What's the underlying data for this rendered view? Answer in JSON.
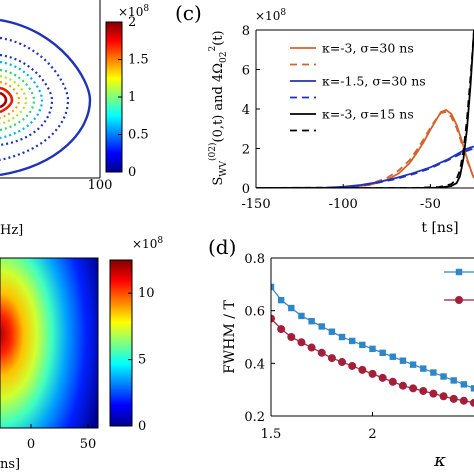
{
  "chart_data": [
    {
      "type": "contour",
      "panel": "top-left (cropped)",
      "xtick_labels": [
        "100"
      ],
      "xlabel_fragment": "Hz]",
      "colorbar": {
        "range": [
          0,
          2
        ],
        "multiplier": "×10^8",
        "tick_labels": [
          "0",
          "0.5",
          "1",
          "1.5",
          "2"
        ]
      }
    },
    {
      "type": "line",
      "panel_label": "(c)",
      "y_multiplier": "×10^8",
      "xlabel": "t [ns]",
      "ylabel": "S_WV^(02)(0,t) and 4Ω_02^2(t)",
      "xlim": [
        -150,
        -25
      ],
      "ylim": [
        0,
        8
      ],
      "x_tick_labels": [
        "-150",
        "-100",
        "-50"
      ],
      "y_tick_labels": [
        "0",
        "2",
        "4",
        "6",
        "8"
      ],
      "legend": [
        {
          "label": "κ=-3, σ=30 ns",
          "color": "#d5622d",
          "style": "solid"
        },
        {
          "label": "",
          "color": "#d5622d",
          "style": "dashed"
        },
        {
          "label": "κ=-1.5, σ=30 ns",
          "color": "#1f33b8",
          "style": "solid"
        },
        {
          "label": "",
          "color": "#1f33b8",
          "style": "dashed"
        },
        {
          "label": "κ=-3, σ=15 ns",
          "color": "#000000",
          "style": "solid"
        },
        {
          "label": "",
          "color": "#000000",
          "style": "dashed"
        }
      ],
      "series": [
        {
          "color": "#d5622d",
          "style": "solid",
          "x": [
            -150,
            -110,
            -95,
            -85,
            -75,
            -68,
            -62,
            -58,
            -54,
            -50,
            -47,
            -44,
            -41,
            -38,
            -35,
            -32,
            -29,
            -26,
            -25
          ],
          "y": [
            0,
            0.01,
            0.05,
            0.15,
            0.4,
            0.75,
            1.25,
            1.75,
            2.3,
            2.95,
            3.4,
            3.85,
            3.95,
            3.75,
            3.2,
            2.4,
            1.5,
            0.7,
            0.5
          ]
        },
        {
          "color": "#d5622d",
          "style": "dashed",
          "x": [
            -150,
            -110,
            -95,
            -85,
            -75,
            -68,
            -62,
            -58,
            -54,
            -50,
            -47,
            -44,
            -41,
            -38,
            -35,
            -32,
            -29,
            -26,
            -25
          ],
          "y": [
            0,
            0.02,
            0.07,
            0.2,
            0.5,
            0.9,
            1.4,
            1.9,
            2.45,
            3.05,
            3.45,
            3.8,
            3.85,
            3.6,
            3.05,
            2.25,
            1.4,
            0.7,
            0.5
          ]
        },
        {
          "color": "#1f33b8",
          "style": "solid",
          "x": [
            -150,
            -110,
            -100,
            -90,
            -80,
            -70,
            -60,
            -50,
            -45,
            -40,
            -35,
            -30,
            -27,
            -25
          ],
          "y": [
            0,
            0.02,
            0.06,
            0.15,
            0.3,
            0.5,
            0.75,
            1.05,
            1.25,
            1.45,
            1.7,
            1.95,
            2.05,
            2.1
          ]
        },
        {
          "color": "#1f33b8",
          "style": "dashed",
          "x": [
            -150,
            -110,
            -100,
            -90,
            -80,
            -70,
            -60,
            -50,
            -45,
            -40,
            -35,
            -30,
            -27,
            -25
          ],
          "y": [
            0,
            0.01,
            0.04,
            0.12,
            0.27,
            0.45,
            0.7,
            1.0,
            1.2,
            1.4,
            1.62,
            1.85,
            1.95,
            2.0
          ]
        },
        {
          "color": "#000000",
          "style": "solid",
          "x": [
            -150,
            -60,
            -45,
            -38,
            -35,
            -33,
            -31,
            -29,
            -27,
            -26,
            -25
          ],
          "y": [
            0,
            0,
            0.02,
            0.1,
            0.25,
            0.6,
            1.5,
            3.0,
            5.2,
            6.6,
            8.0
          ]
        },
        {
          "color": "#000000",
          "style": "dashed",
          "x": [
            -150,
            -60,
            -45,
            -38,
            -35,
            -33,
            -31,
            -29,
            -27,
            -26,
            -25
          ],
          "y": [
            0,
            0,
            0.05,
            0.2,
            0.45,
            0.9,
            1.9,
            3.5,
            5.6,
            6.8,
            8.0
          ]
        }
      ]
    },
    {
      "type": "heatmap",
      "panel": "bottom-left (cropped)",
      "xtick_labels": [
        "0",
        "50"
      ],
      "xlabel_fragment": "ns]",
      "colorbar": {
        "range": [
          0,
          12.5
        ],
        "multiplier": "×10^8",
        "tick_labels": [
          "0",
          "5",
          "10"
        ]
      }
    },
    {
      "type": "line",
      "panel_label": "(d)",
      "xlabel": "κ",
      "ylabel": "FWHM / T",
      "xlim": [
        1.5,
        2.5
      ],
      "ylim": [
        0.2,
        0.8
      ],
      "x_tick_labels": [
        "1.5",
        "2"
      ],
      "y_tick_labels": [
        "0.2",
        "0.4",
        "0.6",
        "0.8"
      ],
      "series": [
        {
          "color": "#2e86c8",
          "marker": "square",
          "x": [
            1.5,
            1.55,
            1.6,
            1.65,
            1.7,
            1.75,
            1.8,
            1.85,
            1.9,
            1.95,
            2.0,
            2.05,
            2.1,
            2.15,
            2.2,
            2.25,
            2.3,
            2.35,
            2.4,
            2.45,
            2.5
          ],
          "y": [
            0.69,
            0.64,
            0.61,
            0.58,
            0.56,
            0.54,
            0.52,
            0.5,
            0.485,
            0.47,
            0.455,
            0.44,
            0.425,
            0.41,
            0.395,
            0.38,
            0.365,
            0.35,
            0.335,
            0.32,
            0.305
          ]
        },
        {
          "color": "#a31f3a",
          "marker": "circle",
          "x": [
            1.5,
            1.55,
            1.6,
            1.65,
            1.7,
            1.75,
            1.8,
            1.85,
            1.9,
            1.95,
            2.0,
            2.05,
            2.1,
            2.15,
            2.2,
            2.25,
            2.3,
            2.35,
            2.4,
            2.45,
            2.5
          ],
          "y": [
            0.57,
            0.53,
            0.5,
            0.48,
            0.46,
            0.44,
            0.42,
            0.405,
            0.39,
            0.375,
            0.36,
            0.345,
            0.33,
            0.315,
            0.305,
            0.295,
            0.285,
            0.275,
            0.265,
            0.258,
            0.25
          ]
        }
      ]
    }
  ],
  "colors": {
    "orange": "#d5622d",
    "blue": "#1f33b8",
    "black": "#000000",
    "square_series": "#2e86c8",
    "circle_series": "#a31f3a"
  }
}
